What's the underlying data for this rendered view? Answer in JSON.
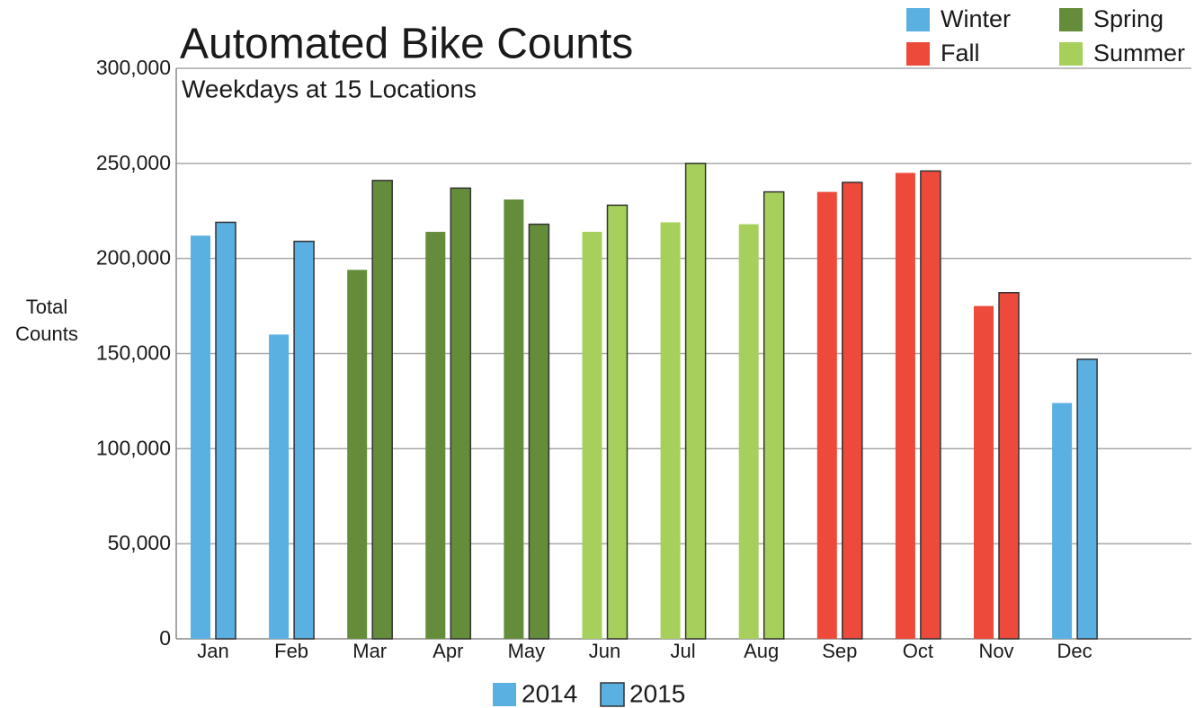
{
  "chart_data": {
    "type": "bar",
    "title": "Automated Bike Counts",
    "subtitle": "Weekdays at 15 Locations",
    "ylabel": [
      "Total",
      "Counts"
    ],
    "categories": [
      "Jan",
      "Feb",
      "Mar",
      "Apr",
      "May",
      "Jun",
      "Jul",
      "Aug",
      "Sep",
      "Oct",
      "Nov",
      "Dec"
    ],
    "series": [
      {
        "name": "2014",
        "values": [
          212000,
          160000,
          194000,
          214000,
          231000,
          214000,
          219000,
          218000,
          235000,
          245000,
          175000,
          124000
        ]
      },
      {
        "name": "2015",
        "values": [
          219000,
          209000,
          241000,
          237000,
          218000,
          228000,
          250000,
          235000,
          240000,
          246000,
          182000,
          147000
        ]
      }
    ],
    "bar_colors": [
      "#5bb0e2",
      "#5bb0e2",
      "#658c3a",
      "#658c3a",
      "#658c3a",
      "#a6d05b",
      "#a6d05b",
      "#a6d05b",
      "#ee4a3c",
      "#ee4a3c",
      "#ee4a3c",
      "#5bb0e2"
    ],
    "season_legend": [
      {
        "name": "Winter",
        "color": "#5bb0e2"
      },
      {
        "name": "Spring",
        "color": "#658c3a"
      },
      {
        "name": "Fall",
        "color": "#ee4a3c"
      },
      {
        "name": "Summer",
        "color": "#a6d05b"
      }
    ],
    "ylim": [
      0,
      300000
    ],
    "yticks": [
      0,
      {
        "value": 50000,
        "label": "50,000"
      },
      {
        "value": 100000,
        "label": "100,000"
      },
      {
        "value": 150000,
        "label": "150,000"
      },
      {
        "value": 200000,
        "label": "200,000"
      },
      {
        "value": 250000,
        "label": "250,000"
      },
      {
        "value": 300000,
        "label": "300,000"
      }
    ],
    "grid": true
  }
}
